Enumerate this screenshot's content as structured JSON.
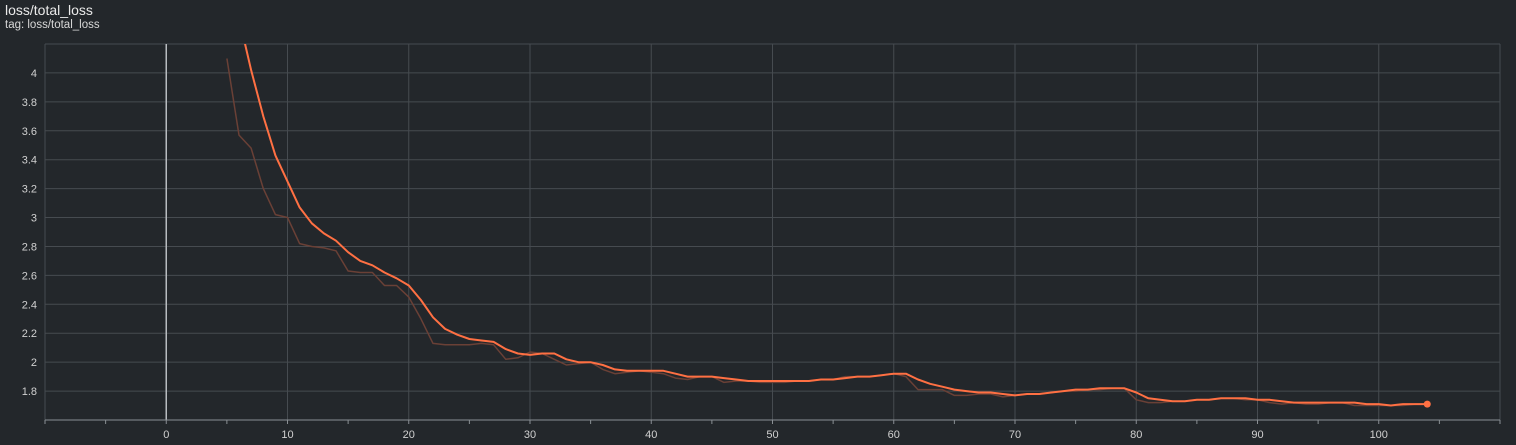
{
  "card": {
    "title": "loss/total_loss",
    "tag": "tag: loss/total_loss"
  },
  "colors": {
    "background": "#23272b",
    "grid": "#464b50",
    "axis": "#8a8f94",
    "zero_line": "#b8bcc0",
    "smoothed": "#ff7043",
    "raw": "#6a4036"
  },
  "chart_data": {
    "type": "line",
    "title": "loss/total_loss",
    "xlabel": "",
    "ylabel": "",
    "xlim": [
      -10,
      110
    ],
    "ylim": [
      1.6,
      4.2
    ],
    "xticks": [
      0,
      10,
      20,
      30,
      40,
      50,
      60,
      70,
      80,
      90,
      100
    ],
    "yticks": [
      1.8,
      2,
      2.2,
      2.4,
      2.6,
      2.8,
      3,
      3.2,
      3.4,
      3.6,
      3.8,
      4
    ],
    "grid": true,
    "legend": "none",
    "series": [
      {
        "role": "raw",
        "x": [
          5,
          6,
          7,
          8,
          9,
          10,
          11,
          12,
          13,
          14,
          15,
          16,
          17,
          18,
          19,
          20,
          21,
          22,
          23,
          24,
          25,
          26,
          27,
          28,
          29,
          30,
          31,
          32,
          33,
          34,
          35,
          36,
          37,
          38,
          39,
          40,
          41,
          42,
          43,
          44,
          45,
          46,
          47,
          48,
          49,
          50,
          51,
          52,
          53,
          54,
          55,
          56,
          57,
          58,
          59,
          60,
          61,
          62,
          63,
          64,
          65,
          66,
          67,
          68,
          69,
          70,
          71,
          72,
          73,
          74,
          75,
          76,
          77,
          78,
          79,
          80,
          81,
          82,
          83,
          84,
          85,
          86,
          87,
          88,
          89,
          90,
          91,
          92,
          93,
          94,
          95,
          96,
          97,
          98,
          99,
          100,
          101,
          102,
          103,
          104
        ],
        "y": [
          4.1,
          3.57,
          3.48,
          3.2,
          3.02,
          3.0,
          2.82,
          2.8,
          2.79,
          2.77,
          2.63,
          2.62,
          2.62,
          2.53,
          2.53,
          2.45,
          2.3,
          2.13,
          2.12,
          2.12,
          2.12,
          2.13,
          2.12,
          2.02,
          2.03,
          2.07,
          2.06,
          2.02,
          1.98,
          1.99,
          2.0,
          1.95,
          1.92,
          1.93,
          1.94,
          1.93,
          1.92,
          1.89,
          1.88,
          1.9,
          1.9,
          1.86,
          1.87,
          1.87,
          1.86,
          1.86,
          1.86,
          1.87,
          1.87,
          1.88,
          1.88,
          1.9,
          1.9,
          1.9,
          1.91,
          1.92,
          1.9,
          1.81,
          1.81,
          1.81,
          1.77,
          1.77,
          1.78,
          1.78,
          1.76,
          1.77,
          1.78,
          1.78,
          1.79,
          1.8,
          1.8,
          1.81,
          1.81,
          1.82,
          1.82,
          1.74,
          1.72,
          1.72,
          1.73,
          1.73,
          1.74,
          1.74,
          1.75,
          1.75,
          1.74,
          1.74,
          1.72,
          1.71,
          1.72,
          1.71,
          1.71,
          1.72,
          1.72,
          1.7,
          1.7,
          1.7,
          1.7,
          1.7,
          1.71,
          1.71
        ]
      },
      {
        "role": "smoothed",
        "x": [
          6,
          7,
          8,
          9,
          10,
          11,
          12,
          13,
          14,
          15,
          16,
          17,
          18,
          19,
          20,
          21,
          22,
          23,
          24,
          25,
          26,
          27,
          28,
          29,
          30,
          31,
          32,
          33,
          34,
          35,
          36,
          37,
          38,
          39,
          40,
          41,
          42,
          43,
          44,
          45,
          46,
          47,
          48,
          49,
          50,
          51,
          52,
          53,
          54,
          55,
          56,
          57,
          58,
          59,
          60,
          61,
          62,
          63,
          64,
          65,
          66,
          67,
          68,
          69,
          70,
          71,
          72,
          73,
          74,
          75,
          76,
          77,
          78,
          79,
          80,
          81,
          82,
          83,
          84,
          85,
          86,
          87,
          88,
          89,
          90,
          91,
          92,
          93,
          94,
          95,
          96,
          97,
          98,
          99,
          100,
          101,
          102,
          103,
          104
        ],
        "y": [
          4.38,
          4.02,
          3.7,
          3.43,
          3.25,
          3.07,
          2.96,
          2.89,
          2.84,
          2.76,
          2.7,
          2.67,
          2.62,
          2.58,
          2.53,
          2.43,
          2.31,
          2.23,
          2.19,
          2.16,
          2.15,
          2.14,
          2.09,
          2.06,
          2.05,
          2.06,
          2.06,
          2.02,
          2.0,
          2.0,
          1.98,
          1.95,
          1.94,
          1.94,
          1.94,
          1.94,
          1.92,
          1.9,
          1.9,
          1.9,
          1.89,
          1.88,
          1.87,
          1.87,
          1.87,
          1.87,
          1.87,
          1.87,
          1.88,
          1.88,
          1.89,
          1.9,
          1.9,
          1.91,
          1.92,
          1.92,
          1.88,
          1.85,
          1.83,
          1.81,
          1.8,
          1.79,
          1.79,
          1.78,
          1.77,
          1.78,
          1.78,
          1.79,
          1.8,
          1.81,
          1.81,
          1.82,
          1.82,
          1.82,
          1.79,
          1.75,
          1.74,
          1.73,
          1.73,
          1.74,
          1.74,
          1.75,
          1.75,
          1.75,
          1.74,
          1.74,
          1.73,
          1.72,
          1.72,
          1.72,
          1.72,
          1.72,
          1.72,
          1.71,
          1.71,
          1.7,
          1.71,
          1.71,
          1.71
        ]
      }
    ]
  }
}
